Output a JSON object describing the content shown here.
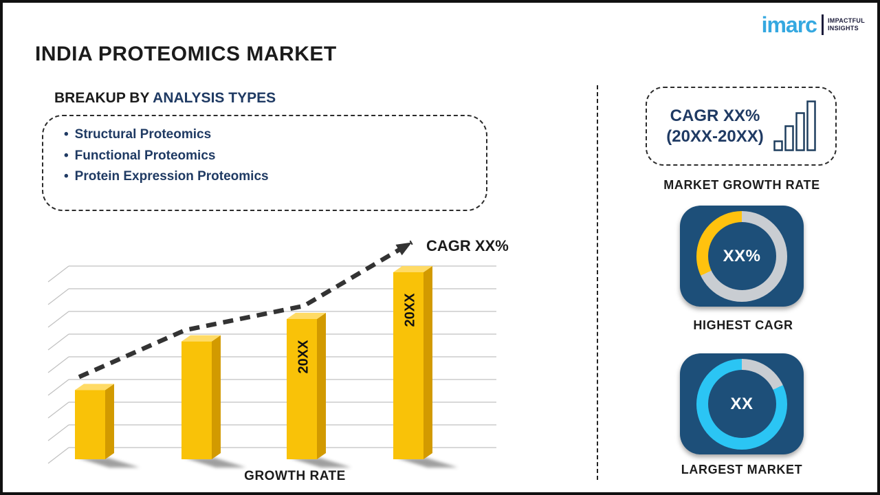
{
  "header": {
    "title": "INDIA PROTEOMICS MARKET"
  },
  "logo": {
    "brand": "imarc",
    "tagline_top": "IMPACTFUL",
    "tagline_bottom": "INSIGHTS",
    "brand_color": "#35A8E0",
    "tagline_color": "#1b1b3a"
  },
  "breakup": {
    "heading_prefix": "BREAKUP BY ",
    "heading_highlight": "ANALYSIS TYPES",
    "items": [
      "Structural Proteomics",
      "Functional Proteomics",
      "Protein Expression Proteomics"
    ]
  },
  "chart_data": {
    "type": "bar",
    "title": "",
    "xlabel": "GROWTH RATE",
    "ylabel": "",
    "categories": [
      "",
      "",
      "20XX",
      "20XX"
    ],
    "values": [
      37,
      63,
      75,
      100
    ],
    "ylim": [
      0,
      100
    ],
    "grid": true,
    "gridline_count": 9,
    "trend_label": "CAGR XX%",
    "trend_values": [
      44,
      69,
      82,
      116
    ],
    "bar_front_color": "#F9C208",
    "bar_side_color": "#D29A00",
    "bar_top_color": "#FFDB66",
    "trend_color": "#333333",
    "gridline_color": "#c0c0c0"
  },
  "right_panel": {
    "cagr_box": {
      "line1": "CAGR XX%",
      "line2": "(20XX-20XX)",
      "icon_color": "#1F3E5F"
    },
    "market_growth_label": "MARKET GROWTH RATE",
    "highest_cagr": {
      "value": "XX%",
      "label": "HIGHEST CAGR",
      "card_color": "#1D4F79",
      "ring_color": "#C9CDD2",
      "segments": [
        {
          "color": "#C9CDD2",
          "from_deg": 0,
          "to_deg": 245
        },
        {
          "color": "#FFC20E",
          "from_deg": 245,
          "to_deg": 360
        }
      ]
    },
    "largest_market": {
      "value": "XX",
      "label": "LARGEST MARKET",
      "card_color": "#1D4F79",
      "ring_color": "#C9CDD2",
      "segments": [
        {
          "color": "#C9CDD2",
          "from_deg": 0,
          "to_deg": 65
        },
        {
          "color": "#2BC5F4",
          "from_deg": 65,
          "to_deg": 360
        }
      ]
    }
  }
}
